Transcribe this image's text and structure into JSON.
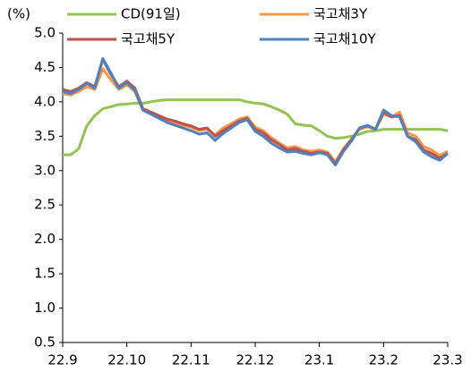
{
  "chart_data": {
    "type": "line",
    "y_label": "(%)",
    "categories": [
      "22.9",
      null,
      null,
      null,
      null,
      null,
      null,
      null,
      "22.10",
      null,
      null,
      null,
      null,
      null,
      null,
      null,
      "22.11",
      null,
      null,
      null,
      null,
      null,
      null,
      null,
      "22.12",
      null,
      null,
      null,
      null,
      null,
      null,
      null,
      "23.1",
      null,
      null,
      null,
      null,
      null,
      null,
      null,
      "23.2",
      null,
      null,
      null,
      null,
      null,
      null,
      null,
      "23.3"
    ],
    "ylim": [
      0.5,
      5.0
    ],
    "yticks": [
      0.5,
      {
        "value": 1.0,
        "label": "1.0"
      },
      1.5,
      {
        "value": 2.0,
        "label": "2.0"
      },
      2.5,
      {
        "value": 3.0,
        "label": "3.0"
      },
      3.5,
      {
        "value": 4.0,
        "label": "4.0"
      },
      4.5,
      {
        "value": 5.0,
        "label": "5.0"
      }
    ],
    "grid": false,
    "series": [
      {
        "name": "CD(91일)",
        "color": "#92c353",
        "values": [
          3.23,
          3.23,
          3.32,
          3.65,
          3.8,
          3.9,
          3.93,
          3.96,
          3.97,
          3.98,
          3.98,
          4.0,
          4.02,
          4.03,
          4.03,
          4.03,
          4.03,
          4.03,
          4.03,
          4.03,
          4.03,
          4.03,
          4.03,
          4.0,
          3.98,
          3.97,
          3.93,
          3.88,
          3.82,
          3.68,
          3.66,
          3.65,
          3.58,
          3.5,
          3.47,
          3.48,
          3.5,
          3.53,
          3.57,
          3.58,
          3.6,
          3.6,
          3.6,
          3.6,
          3.6,
          3.6,
          3.6,
          3.6,
          3.58
        ]
      },
      {
        "name": "국고채3Y",
        "color": "#f79646",
        "values": [
          4.12,
          4.1,
          4.15,
          4.22,
          4.18,
          4.48,
          4.32,
          4.18,
          4.25,
          4.15,
          3.88,
          3.83,
          3.78,
          3.73,
          3.7,
          3.66,
          3.63,
          3.58,
          3.6,
          3.52,
          3.62,
          3.68,
          3.75,
          3.78,
          3.63,
          3.58,
          3.48,
          3.4,
          3.33,
          3.35,
          3.3,
          3.28,
          3.3,
          3.27,
          3.13,
          3.32,
          3.46,
          3.6,
          3.64,
          3.6,
          3.82,
          3.78,
          3.85,
          3.55,
          3.5,
          3.35,
          3.3,
          3.22,
          3.28
        ]
      },
      {
        "name": "국고채5Y",
        "color": "#c0504d",
        "values": [
          4.18,
          4.15,
          4.2,
          4.28,
          4.22,
          4.62,
          4.4,
          4.22,
          4.3,
          4.2,
          3.9,
          3.85,
          3.8,
          3.75,
          3.72,
          3.68,
          3.65,
          3.6,
          3.62,
          3.5,
          3.58,
          3.65,
          3.72,
          3.76,
          3.6,
          3.55,
          3.45,
          3.38,
          3.3,
          3.32,
          3.28,
          3.25,
          3.27,
          3.25,
          3.1,
          3.3,
          3.45,
          3.62,
          3.65,
          3.6,
          3.85,
          3.78,
          3.8,
          3.5,
          3.45,
          3.3,
          3.25,
          3.18,
          3.25
        ]
      },
      {
        "name": "국고채10Y",
        "color": "#4f81bd",
        "values": [
          4.15,
          4.12,
          4.18,
          4.27,
          4.2,
          4.63,
          4.42,
          4.2,
          4.28,
          4.17,
          3.88,
          3.82,
          3.76,
          3.7,
          3.66,
          3.62,
          3.58,
          3.53,
          3.55,
          3.44,
          3.54,
          3.62,
          3.7,
          3.74,
          3.57,
          3.5,
          3.4,
          3.33,
          3.27,
          3.28,
          3.25,
          3.23,
          3.26,
          3.23,
          3.08,
          3.28,
          3.43,
          3.62,
          3.66,
          3.6,
          3.88,
          3.8,
          3.78,
          3.5,
          3.42,
          3.27,
          3.2,
          3.15,
          3.25
        ]
      }
    ]
  }
}
